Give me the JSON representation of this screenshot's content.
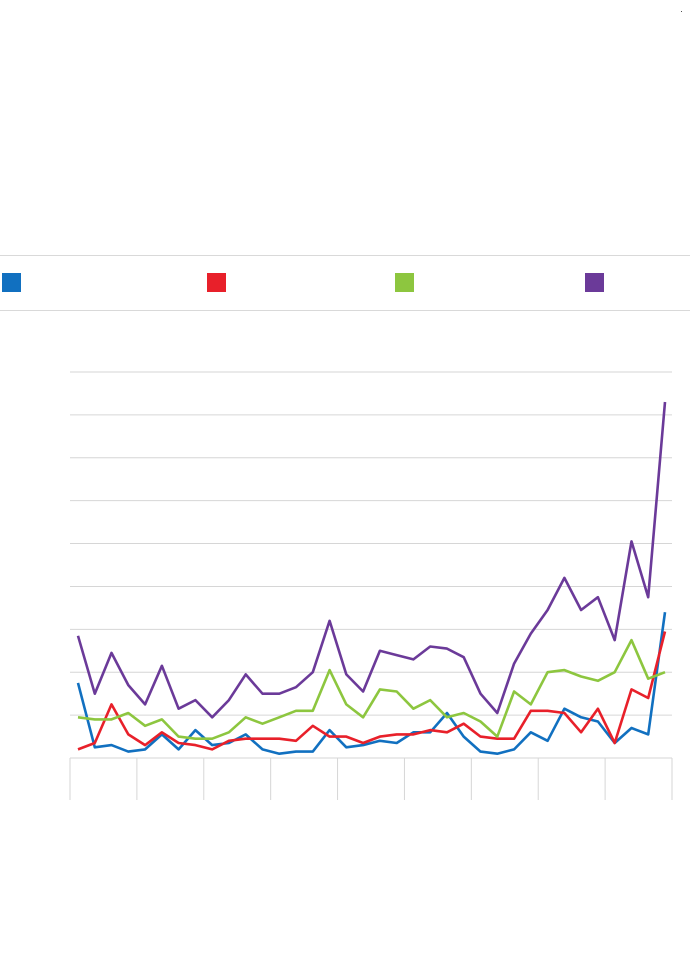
{
  "corner_mark": "·",
  "chart_data": {
    "type": "line",
    "title": "",
    "xlabel": "",
    "ylabel": "",
    "ylim": [
      0,
      9
    ],
    "grid": true,
    "legend_placement": "top",
    "x_groups": 9,
    "x": [
      1,
      2,
      3,
      4,
      5,
      6,
      7,
      8,
      9,
      10,
      11,
      12,
      13,
      14,
      15,
      16,
      17,
      18,
      19,
      20,
      21,
      22,
      23,
      24,
      25,
      26,
      27,
      28,
      29,
      30,
      31,
      32,
      33,
      34,
      35,
      36,
      37
    ],
    "series": [
      {
        "color": "#1170c0",
        "values": [
          1.75,
          0.25,
          0.3,
          0.15,
          0.2,
          0.55,
          0.2,
          0.65,
          0.3,
          0.35,
          0.55,
          0.2,
          0.1,
          0.15,
          0.15,
          0.65,
          0.25,
          0.3,
          0.4,
          0.35,
          0.6,
          0.6,
          1.05,
          0.5,
          0.15,
          0.1,
          0.2,
          0.6,
          0.4,
          1.15,
          0.95,
          0.85,
          0.35,
          0.7,
          0.55,
          3.4,
          3.4
        ]
      },
      {
        "color": "#e8202a",
        "values": [
          0.2,
          0.35,
          1.25,
          0.55,
          0.3,
          0.6,
          0.35,
          0.3,
          0.2,
          0.4,
          0.45,
          0.45,
          0.45,
          0.4,
          0.75,
          0.5,
          0.5,
          0.35,
          0.5,
          0.55,
          0.55,
          0.65,
          0.6,
          0.8,
          0.5,
          0.45,
          0.45,
          1.1,
          1.1,
          1.05,
          0.6,
          1.15,
          0.35,
          1.6,
          1.4,
          2.95,
          2.95
        ]
      },
      {
        "color": "#8dc63f",
        "values": [
          0.95,
          0.9,
          0.9,
          1.05,
          0.75,
          0.9,
          0.5,
          0.45,
          0.45,
          0.6,
          0.95,
          0.8,
          0.95,
          1.1,
          1.1,
          2.05,
          1.25,
          0.95,
          1.6,
          1.55,
          1.15,
          1.35,
          0.95,
          1.05,
          0.85,
          0.5,
          1.55,
          1.25,
          2.0,
          2.05,
          1.9,
          1.8,
          2.0,
          2.75,
          1.85,
          2.0,
          2.0
        ]
      },
      {
        "color": "#6b3a99",
        "values": [
          2.85,
          1.5,
          2.45,
          1.7,
          1.25,
          2.15,
          1.15,
          1.35,
          0.95,
          1.35,
          1.95,
          1.5,
          1.5,
          1.65,
          2.0,
          3.2,
          1.95,
          1.55,
          2.5,
          2.4,
          2.3,
          2.6,
          2.55,
          2.35,
          1.5,
          1.05,
          2.2,
          2.9,
          3.45,
          4.2,
          3.45,
          3.75,
          2.75,
          5.05,
          3.75,
          8.3,
          8.3
        ]
      }
    ],
    "legend": [
      {
        "color": "#1170c0"
      },
      {
        "color": "#e8202a"
      },
      {
        "color": "#8dc63f"
      },
      {
        "color": "#6b3a99"
      }
    ]
  }
}
